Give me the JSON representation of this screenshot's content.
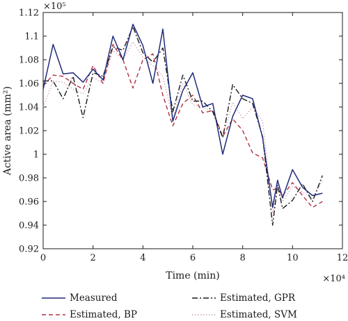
{
  "chart_data": {
    "type": "line",
    "xlabel": "Time (min)",
    "ylabel": "Active area (mm²)",
    "x_multiplier": "×10⁴",
    "y_multiplier": "×10⁵",
    "xlim": [
      0,
      12
    ],
    "ylim": [
      0.92,
      1.12
    ],
    "xticks": [
      "0",
      "2",
      "4",
      "6",
      "8",
      "10",
      "12"
    ],
    "yticks": [
      "0.92",
      "0.94",
      "0.96",
      "0.98",
      "1",
      "1.02",
      "1.04",
      "1.06",
      "1.08",
      "1.1",
      "1.12"
    ],
    "grid": false,
    "legend_position": "below",
    "x": [
      0,
      0.4,
      0.8,
      1.2,
      1.6,
      2.0,
      2.4,
      2.8,
      3.2,
      3.6,
      4.0,
      4.4,
      4.8,
      5.2,
      5.6,
      6.0,
      6.4,
      6.8,
      7.2,
      7.6,
      8.0,
      8.4,
      8.8,
      9.2,
      9.4,
      9.6,
      10.0,
      10.4,
      10.8,
      11.2
    ],
    "series": [
      {
        "name": "Measured",
        "color": "#1f2a7a",
        "dash": "solid",
        "values": [
          1.055,
          1.093,
          1.068,
          1.069,
          1.061,
          1.072,
          1.063,
          1.1,
          1.08,
          1.11,
          1.092,
          1.06,
          1.106,
          1.028,
          1.054,
          1.069,
          1.04,
          1.043,
          1.0,
          1.032,
          1.05,
          1.047,
          1.014,
          0.955,
          0.978,
          0.963,
          0.987,
          0.972,
          0.965,
          0.967
        ]
      },
      {
        "name": "Estimated, BP",
        "color": "#b03040",
        "dash": "6,4",
        "values": [
          1.058,
          1.067,
          1.066,
          1.06,
          1.055,
          1.075,
          1.06,
          1.093,
          1.08,
          1.056,
          1.08,
          1.085,
          1.05,
          1.024,
          1.043,
          1.05,
          1.035,
          1.037,
          1.015,
          1.03,
          1.02,
          1.001,
          0.997,
          0.97,
          0.971,
          0.965,
          0.976,
          0.965,
          0.955,
          0.96
        ]
      },
      {
        "name": "Estimated, GPR",
        "color": "#1a1a1a",
        "dash": "8,3,2,3",
        "values": [
          1.062,
          1.062,
          1.047,
          1.066,
          1.031,
          1.069,
          1.066,
          1.091,
          1.088,
          1.108,
          1.086,
          1.078,
          1.09,
          1.036,
          1.067,
          1.045,
          1.045,
          1.036,
          1.014,
          1.059,
          1.047,
          1.043,
          1.015,
          0.94,
          0.974,
          0.954,
          0.961,
          0.975,
          0.96,
          0.982
        ]
      },
      {
        "name": "Estimated, SVM",
        "color": "#c9a0a8",
        "dash": "1.5,2.5",
        "values": [
          1.04,
          1.062,
          1.061,
          1.055,
          1.051,
          1.065,
          1.06,
          1.088,
          1.08,
          1.095,
          1.082,
          1.075,
          1.066,
          1.03,
          1.06,
          1.042,
          1.04,
          1.036,
          1.015,
          1.044,
          1.03,
          1.04,
          1.028,
          0.95,
          0.972,
          0.96,
          0.973,
          0.968,
          0.962,
          0.978
        ]
      }
    ]
  }
}
